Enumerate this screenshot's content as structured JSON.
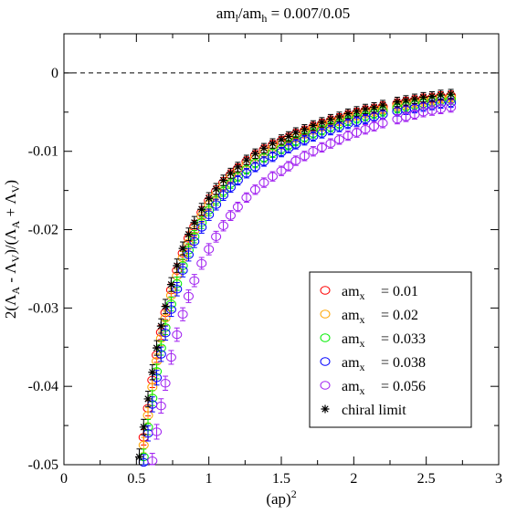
{
  "chart_data": {
    "type": "scatter",
    "title": "am_l/am_h = 0.007/0.05",
    "title_parts": {
      "base1": "am",
      "sub1": "l",
      "mid": "/am",
      "sub2": "h",
      "rest": " = 0.007/0.05"
    },
    "xlabel": "(ap)^2",
    "xlabel_parts": {
      "base": "(ap)",
      "sup": "2"
    },
    "ylabel": "2(Λ_A - Λ_V)/(Λ_A + Λ_V)",
    "ylabel_parts": [
      "2(Λ",
      "A",
      " - Λ",
      "V",
      ")/(Λ",
      "A",
      " + Λ",
      "V",
      ")"
    ],
    "xlim": [
      0,
      3
    ],
    "ylim": [
      -0.05,
      0.005
    ],
    "x_ticks": [
      "0",
      "0.5",
      "1",
      "1.5",
      "2",
      "2.5",
      "3"
    ],
    "x_tick_values": [
      0,
      0.5,
      1,
      1.5,
      2,
      2.5,
      3
    ],
    "y_ticks": [
      "-0.05",
      "-0.04",
      "-0.03",
      "-0.02",
      "-0.01",
      "0"
    ],
    "y_tick_values": [
      -0.05,
      -0.04,
      -0.03,
      -0.02,
      -0.01,
      0
    ],
    "reference_line": {
      "y": 0,
      "style": "dashed"
    },
    "legend_position": "right",
    "series": [
      {
        "name": "am_x = 0.01",
        "label_base": "am",
        "label_sub": "x",
        "label_value": "= 0.01",
        "marker": "circle",
        "color": "#ff0000",
        "offset": 0.0,
        "x": [
          0.55,
          0.58,
          0.61,
          0.64,
          0.67,
          0.7,
          0.74,
          0.78,
          0.82,
          0.86,
          0.9,
          0.95,
          1.0,
          1.05,
          1.1,
          1.15,
          1.2,
          1.26,
          1.32,
          1.38,
          1.44,
          1.5,
          1.55,
          1.6,
          1.66,
          1.72,
          1.78,
          1.84,
          1.9,
          1.96,
          2.02,
          2.08,
          2.14,
          2.2,
          2.3,
          2.36,
          2.42,
          2.48,
          2.54,
          2.6,
          2.67
        ],
        "y": [
          -0.0465,
          -0.0428,
          -0.0392,
          -0.036,
          -0.0331,
          -0.0306,
          -0.0277,
          -0.0252,
          -0.023,
          -0.0211,
          -0.0196,
          -0.0178,
          -0.0163,
          -0.0151,
          -0.014,
          -0.013,
          -0.0122,
          -0.0113,
          -0.0105,
          -0.0098,
          -0.0092,
          -0.0087,
          -0.0083,
          -0.0078,
          -0.0074,
          -0.0069,
          -0.0065,
          -0.0061,
          -0.0058,
          -0.0054,
          -0.0051,
          -0.0048,
          -0.0046,
          -0.0043,
          -0.0039,
          -0.0037,
          -0.0035,
          -0.0033,
          -0.0032,
          -0.003,
          -0.0029
        ]
      },
      {
        "name": "am_x = 0.02",
        "label_base": "am",
        "label_sub": "x",
        "label_value": "= 0.02",
        "marker": "circle",
        "color": "#ffa500",
        "offset": 0.0004,
        "x": [
          0.55,
          0.58,
          0.61,
          0.64,
          0.67,
          0.7,
          0.74,
          0.78,
          0.82,
          0.86,
          0.9,
          0.95,
          1.0,
          1.05,
          1.1,
          1.15,
          1.2,
          1.26,
          1.32,
          1.38,
          1.44,
          1.5,
          1.55,
          1.6,
          1.66,
          1.72,
          1.78,
          1.84,
          1.9,
          1.96,
          2.02,
          2.08,
          2.14,
          2.2,
          2.3,
          2.36,
          2.42,
          2.48,
          2.54,
          2.6,
          2.67
        ],
        "y": [
          -0.0475,
          -0.0437,
          -0.0401,
          -0.0368,
          -0.0339,
          -0.0313,
          -0.0284,
          -0.0259,
          -0.0236,
          -0.0217,
          -0.0201,
          -0.0183,
          -0.0168,
          -0.0155,
          -0.0144,
          -0.0134,
          -0.0126,
          -0.0117,
          -0.0109,
          -0.0102,
          -0.0096,
          -0.0091,
          -0.0087,
          -0.0082,
          -0.0077,
          -0.0072,
          -0.0068,
          -0.0064,
          -0.0061,
          -0.0057,
          -0.0054,
          -0.0051,
          -0.0049,
          -0.0046,
          -0.0042,
          -0.004,
          -0.0038,
          -0.0036,
          -0.0034,
          -0.0032,
          -0.0031
        ]
      },
      {
        "name": "am_x = 0.033",
        "label_base": "am",
        "label_sub": "x",
        "label_value": "= 0.033",
        "marker": "circle",
        "color": "#00ee00",
        "offset": 0.0008,
        "x": [
          0.55,
          0.58,
          0.61,
          0.64,
          0.67,
          0.7,
          0.74,
          0.78,
          0.82,
          0.86,
          0.9,
          0.95,
          1.0,
          1.05,
          1.1,
          1.15,
          1.2,
          1.26,
          1.32,
          1.38,
          1.44,
          1.5,
          1.55,
          1.6,
          1.66,
          1.72,
          1.78,
          1.84,
          1.9,
          1.96,
          2.02,
          2.08,
          2.14,
          2.2,
          2.3,
          2.36,
          2.42,
          2.48,
          2.54,
          2.6,
          2.67
        ],
        "y": [
          -0.049,
          -0.0452,
          -0.0415,
          -0.0381,
          -0.0351,
          -0.0325,
          -0.0295,
          -0.0269,
          -0.0246,
          -0.0226,
          -0.0209,
          -0.0191,
          -0.0175,
          -0.0162,
          -0.0151,
          -0.0141,
          -0.0132,
          -0.0123,
          -0.0115,
          -0.0108,
          -0.0102,
          -0.0097,
          -0.0092,
          -0.0087,
          -0.0082,
          -0.0077,
          -0.0073,
          -0.0069,
          -0.0065,
          -0.0061,
          -0.0058,
          -0.0055,
          -0.0052,
          -0.0049,
          -0.0045,
          -0.0043,
          -0.0041,
          -0.0039,
          -0.0037,
          -0.0035,
          -0.0034
        ]
      },
      {
        "name": "am_x = 0.038",
        "label_base": "am",
        "label_sub": "x",
        "label_value": "= 0.038",
        "marker": "circle",
        "color": "#0000ff",
        "offset": 0.0012,
        "x": [
          0.55,
          0.58,
          0.61,
          0.64,
          0.67,
          0.7,
          0.74,
          0.78,
          0.82,
          0.86,
          0.9,
          0.95,
          1.0,
          1.05,
          1.1,
          1.15,
          1.2,
          1.26,
          1.32,
          1.38,
          1.44,
          1.5,
          1.55,
          1.6,
          1.66,
          1.72,
          1.78,
          1.84,
          1.9,
          1.96,
          2.02,
          2.08,
          2.14,
          2.2,
          2.3,
          2.36,
          2.42,
          2.48,
          2.54,
          2.6,
          2.67
        ],
        "y": [
          -0.0497,
          -0.046,
          -0.0423,
          -0.0389,
          -0.0359,
          -0.0332,
          -0.0302,
          -0.0276,
          -0.0252,
          -0.0232,
          -0.0215,
          -0.0197,
          -0.0181,
          -0.0168,
          -0.0156,
          -0.0146,
          -0.0137,
          -0.0128,
          -0.012,
          -0.0113,
          -0.0107,
          -0.0101,
          -0.0096,
          -0.0091,
          -0.0086,
          -0.0081,
          -0.0077,
          -0.0073,
          -0.0069,
          -0.0065,
          -0.0062,
          -0.0059,
          -0.0056,
          -0.0053,
          -0.0049,
          -0.0047,
          -0.0045,
          -0.0043,
          -0.0041,
          -0.0039,
          -0.0038
        ]
      },
      {
        "name": "am_x = 0.056",
        "label_base": "am",
        "label_sub": "x",
        "label_value": "= 0.056",
        "marker": "circle",
        "color": "#a020f0",
        "offset": 0.0016,
        "x": [
          0.61,
          0.64,
          0.67,
          0.7,
          0.74,
          0.78,
          0.82,
          0.86,
          0.9,
          0.95,
          1.0,
          1.05,
          1.1,
          1.15,
          1.2,
          1.26,
          1.32,
          1.38,
          1.44,
          1.5,
          1.55,
          1.6,
          1.66,
          1.72,
          1.78,
          1.84,
          1.9,
          1.96,
          2.02,
          2.08,
          2.14,
          2.2,
          2.3,
          2.36,
          2.42,
          2.48,
          2.54,
          2.6,
          2.67
        ],
        "y": [
          -0.0495,
          -0.0458,
          -0.0425,
          -0.0396,
          -0.0363,
          -0.0334,
          -0.0308,
          -0.0285,
          -0.0265,
          -0.0243,
          -0.0225,
          -0.0209,
          -0.0195,
          -0.0182,
          -0.0171,
          -0.0159,
          -0.0149,
          -0.014,
          -0.0132,
          -0.0125,
          -0.0119,
          -0.0112,
          -0.0106,
          -0.01,
          -0.0095,
          -0.009,
          -0.0085,
          -0.008,
          -0.0076,
          -0.0072,
          -0.0068,
          -0.0064,
          -0.0059,
          -0.0056,
          -0.0053,
          -0.005,
          -0.0048,
          -0.0046,
          -0.0044
        ]
      },
      {
        "name": "chiral limit",
        "label_base": "chiral limit",
        "label_sub": "",
        "label_value": "",
        "marker": "star",
        "color": "#000000",
        "offset": -0.0004,
        "x": [
          0.52,
          0.55,
          0.58,
          0.61,
          0.64,
          0.67,
          0.7,
          0.74,
          0.78,
          0.82,
          0.86,
          0.9,
          0.95,
          1.0,
          1.05,
          1.1,
          1.15,
          1.2,
          1.26,
          1.32,
          1.38,
          1.44,
          1.5,
          1.55,
          1.6,
          1.66,
          1.72,
          1.78,
          1.84,
          1.9,
          1.96,
          2.02,
          2.08,
          2.14,
          2.2,
          2.3,
          2.36,
          2.42,
          2.48,
          2.54,
          2.6,
          2.67
        ],
        "y": [
          -0.049,
          -0.0452,
          -0.0416,
          -0.0382,
          -0.0351,
          -0.0323,
          -0.0298,
          -0.027,
          -0.0246,
          -0.0224,
          -0.0206,
          -0.0191,
          -0.0174,
          -0.016,
          -0.0148,
          -0.0137,
          -0.0128,
          -0.012,
          -0.0111,
          -0.0103,
          -0.0096,
          -0.009,
          -0.0085,
          -0.0081,
          -0.0076,
          -0.0072,
          -0.0067,
          -0.0063,
          -0.0059,
          -0.0056,
          -0.0052,
          -0.0049,
          -0.0046,
          -0.0044,
          -0.0041,
          -0.0037,
          -0.0035,
          -0.0033,
          -0.0031,
          -0.003,
          -0.0028,
          -0.0027
        ]
      }
    ]
  }
}
